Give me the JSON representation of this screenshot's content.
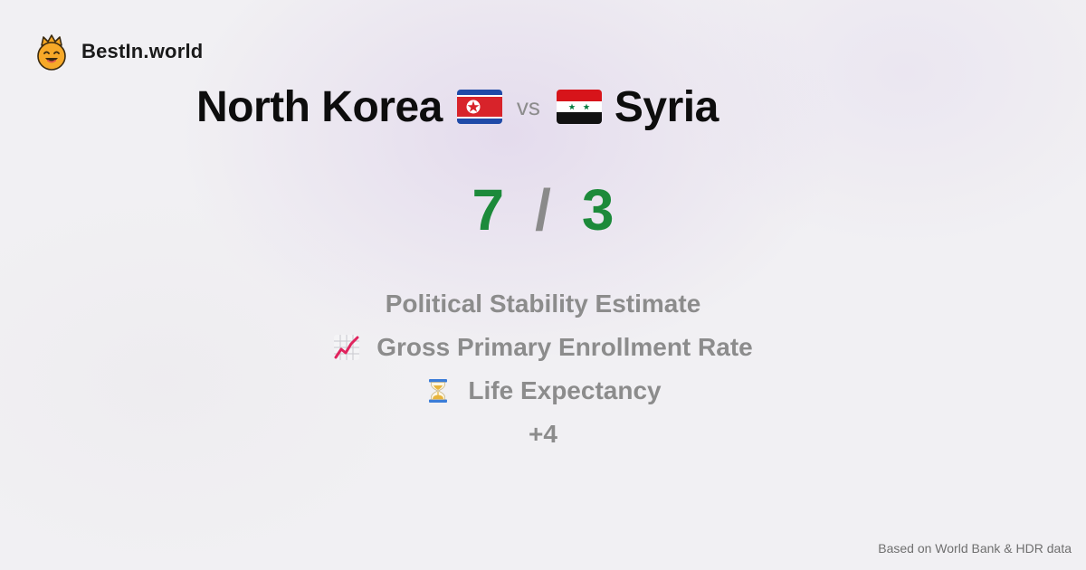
{
  "brand": {
    "name": "BestIn.world",
    "logo_icon": "crowned-smiley-icon"
  },
  "comparison": {
    "left_country": "North Korea",
    "left_flag_icon": "north-korea-flag-icon",
    "vs_label": "vs",
    "right_country": "Syria",
    "right_flag_icon": "syria-flag-icon"
  },
  "score": {
    "left": "7",
    "separator": "/",
    "right": "3",
    "winner_color": "#1c8a3a"
  },
  "metrics": [
    {
      "icon": "",
      "label": "Political Stability Estimate"
    },
    {
      "icon": "chart-increasing-icon",
      "label": "Gross Primary Enrollment Rate"
    },
    {
      "icon": "hourglass-icon",
      "label": "Life Expectancy"
    }
  ],
  "more_metrics": "+4",
  "footer": {
    "source_note": "Based on World Bank & HDR data"
  }
}
